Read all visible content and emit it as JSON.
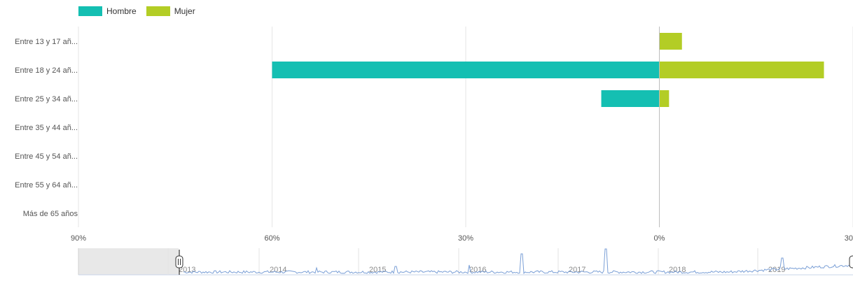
{
  "chart_data": {
    "type": "bar",
    "orientation": "horizontal-diverging",
    "categories": [
      "Entre 13 y 17 añ...",
      "Entre 18 y 24 añ...",
      "Entre 25 y 34 añ...",
      "Entre 35 y 44 añ...",
      "Entre 45 y 54 añ...",
      "Entre 55 y 64 añ...",
      "Más de 65 años"
    ],
    "series": [
      {
        "name": "Hombre",
        "color": "#14bfb2",
        "values": [
          0,
          60,
          9,
          0,
          0,
          0,
          0
        ]
      },
      {
        "name": "Mujer",
        "color": "#b3cd25",
        "values": [
          3.5,
          25.5,
          1.5,
          0,
          0,
          0,
          0
        ]
      }
    ],
    "x_ticks": [
      "90%",
      "60%",
      "30%",
      "0%",
      "30"
    ],
    "x_tick_values": [
      90,
      60,
      30,
      0,
      -30
    ],
    "xlim": [
      90,
      -30
    ],
    "grid": true,
    "legend_position": "top-left"
  },
  "navigator": {
    "year_labels": [
      "2013",
      "2014",
      "2015",
      "2016",
      "2017",
      "2018",
      "2019"
    ],
    "line_color": "#7a9fd6",
    "selection_color": "#e8e8e8"
  }
}
